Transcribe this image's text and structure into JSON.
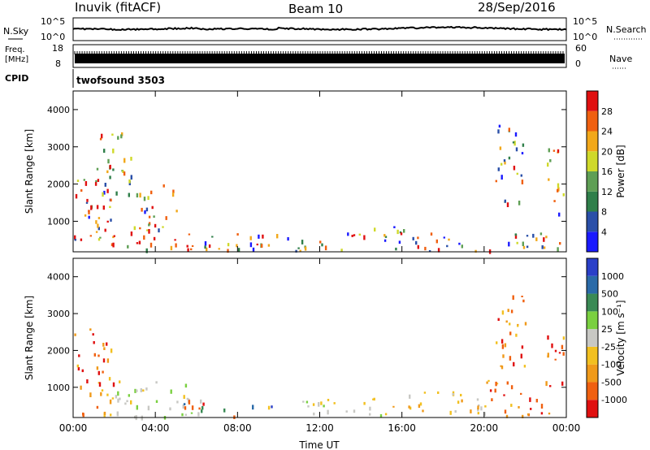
{
  "header": {
    "station": "Inuvik (fitACF)",
    "beam": "Beam 10",
    "date": "28/Sep/2016"
  },
  "strips": {
    "nsky": {
      "label": "N.Sky",
      "ticks": [
        "10^5",
        "10^0"
      ]
    },
    "nsearch": {
      "label": "N.Search",
      "ticks": [
        "10^5",
        "10^0"
      ]
    },
    "freq": {
      "label_line1": "Freq.",
      "label_line2": "[MHz]",
      "ticks": [
        "18",
        "8"
      ]
    },
    "nave": {
      "label": "Nave",
      "ticks": [
        "60",
        "0"
      ]
    },
    "cpid": {
      "label": "CPID",
      "value": "twofsound 3503"
    }
  },
  "colors": {
    "power": [
      "#1a1aff",
      "#2a4fa8",
      "#2f7f4a",
      "#5f9f55",
      "#cfd92a",
      "#f2a81a",
      "#f06010",
      "#e01010"
    ],
    "velocity": [
      "#e01010",
      "#f06010",
      "#f09a1a",
      "#f2c020",
      "#c8c8c4",
      "#7ad040",
      "#3a8a55",
      "#2a6aa8",
      "#2a3fc8"
    ]
  },
  "chart_data": [
    {
      "type": "heatmap",
      "variable": "Power",
      "ylabel": "Slant Range [km]",
      "ylim": [
        180,
        4500
      ],
      "yticks": [
        "1000",
        "2000",
        "3000",
        "4000"
      ],
      "colorbar_label": "Power [dB]",
      "colorbar_ticks": [
        "4",
        "8",
        "12",
        "16",
        "20",
        "24",
        "28"
      ],
      "colorbar_range": [
        0,
        32
      ],
      "regions": [
        {
          "t": [
            0.0,
            2.0
          ],
          "r": [
            200,
            2400
          ],
          "level": "mixed-high"
        },
        {
          "t": [
            0.5,
            1.5
          ],
          "r": [
            600,
            1200
          ],
          "level": 28
        },
        {
          "t": [
            1.0,
            2.8
          ],
          "r": [
            1400,
            3400
          ],
          "level": "mixed"
        },
        {
          "t": [
            2.5,
            5.0
          ],
          "r": [
            200,
            2000
          ],
          "level": "mixed-high"
        },
        {
          "t": [
            4.5,
            6.0
          ],
          "r": [
            200,
            800
          ],
          "level": 30
        },
        {
          "t": [
            6.0,
            24.0
          ],
          "r": [
            200,
            700
          ],
          "level": "mixed"
        },
        {
          "t": [
            10.5,
            12.0
          ],
          "r": [
            200,
            500
          ],
          "level": 28
        },
        {
          "t": [
            14.5,
            17.0
          ],
          "r": [
            500,
            900
          ],
          "level": "mixed"
        },
        {
          "t": [
            20.5,
            22.0
          ],
          "r": [
            1500,
            3600
          ],
          "level": "mixed"
        },
        {
          "t": [
            23.0,
            24.0
          ],
          "r": [
            1200,
            3000
          ],
          "level": "mixed"
        }
      ]
    },
    {
      "type": "heatmap",
      "variable": "Velocity",
      "ylabel": "Slant Range [km]",
      "xlabel": "Time UT",
      "ylim": [
        180,
        4500
      ],
      "yticks": [
        "1000",
        "2000",
        "3000",
        "4000"
      ],
      "xticks": [
        "00:00",
        "04:00",
        "08:00",
        "12:00",
        "16:00",
        "20:00",
        "00:00"
      ],
      "colorbar_label": "Velocity [m s⁻¹]",
      "colorbar_ticks": [
        "1000",
        "500",
        "100",
        "25",
        "-25",
        "-100",
        "-500",
        "-1000"
      ],
      "regions": [
        {
          "t": [
            0.0,
            2.0
          ],
          "r": [
            200,
            2600
          ],
          "level": "negative"
        },
        {
          "t": [
            2.0,
            6.0
          ],
          "r": [
            200,
            1200
          ],
          "level": "near-zero"
        },
        {
          "t": [
            5.0,
            10.0
          ],
          "r": [
            200,
            700
          ],
          "level": "mixed"
        },
        {
          "t": [
            11.0,
            15.0
          ],
          "r": [
            200,
            800
          ],
          "level": "near-zero"
        },
        {
          "t": [
            15.0,
            20.0
          ],
          "r": [
            300,
            900
          ],
          "level": "negative-small"
        },
        {
          "t": [
            20.0,
            24.0
          ],
          "r": [
            200,
            1200
          ],
          "level": "negative"
        },
        {
          "t": [
            20.5,
            22.0
          ],
          "r": [
            1500,
            3600
          ],
          "level": "negative"
        },
        {
          "t": [
            23.0,
            24.0
          ],
          "r": [
            1500,
            3000
          ],
          "level": "negative"
        }
      ]
    }
  ]
}
